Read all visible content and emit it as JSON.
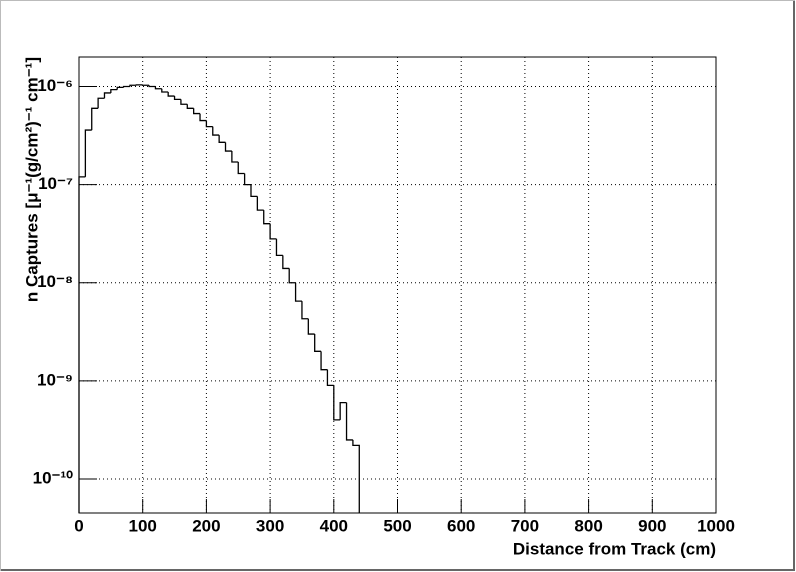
{
  "chart_data": {
    "type": "histogram",
    "x_label": "Distance from Track (cm)",
    "y_label": "n Captures [μ⁻¹(g/cm²)⁻¹ cm⁻¹]",
    "bins": [
      0,
      10,
      20,
      30,
      40,
      50,
      60,
      70,
      80,
      90,
      100,
      110,
      120,
      130,
      140,
      150,
      160,
      170,
      180,
      190,
      200,
      210,
      220,
      230,
      240,
      250,
      260,
      270,
      280,
      290,
      300,
      310,
      320,
      330,
      340,
      350,
      360,
      370,
      380,
      390,
      400,
      410,
      420,
      430,
      440
    ],
    "values": [
      1.2e-07,
      3.6e-07,
      6e-07,
      7.6e-07,
      8.6e-07,
      9.3e-07,
      9.8e-07,
      1e-06,
      1.03e-06,
      1.04e-06,
      1.03e-06,
      1e-06,
      9.5e-07,
      8.8e-07,
      8e-07,
      7.4e-07,
      6.6e-07,
      6e-07,
      5.3e-07,
      4.5e-07,
      3.9e-07,
      3.2e-07,
      2.7e-07,
      2.2e-07,
      1.7e-07,
      1.3e-07,
      1e-07,
      7.6e-08,
      5.5e-08,
      4e-08,
      2.8e-08,
      1.9e-08,
      1.4e-08,
      1e-08,
      6.5e-09,
      4.3e-09,
      3e-09,
      2e-09,
      1.3e-09,
      9e-10,
      4e-10,
      6e-10,
      2.5e-10,
      2.2e-10
    ],
    "color": "#000000",
    "xlim": [
      0,
      1000
    ],
    "xticks": [
      0,
      100,
      200,
      300,
      400,
      500,
      600,
      700,
      800,
      900,
      1000
    ],
    "ylim": [
      4.5e-11,
      2e-06
    ],
    "log_y": true,
    "yticks": [
      {
        "value": 1e-10,
        "label": "10⁻¹⁰"
      },
      {
        "value": 1e-09,
        "label": "10⁻⁹"
      },
      {
        "value": 1e-08,
        "label": "10⁻⁸"
      },
      {
        "value": 1e-07,
        "label": "10⁻⁷"
      },
      {
        "value": 1e-06,
        "label": "10⁻⁶"
      }
    ],
    "grid": true
  }
}
